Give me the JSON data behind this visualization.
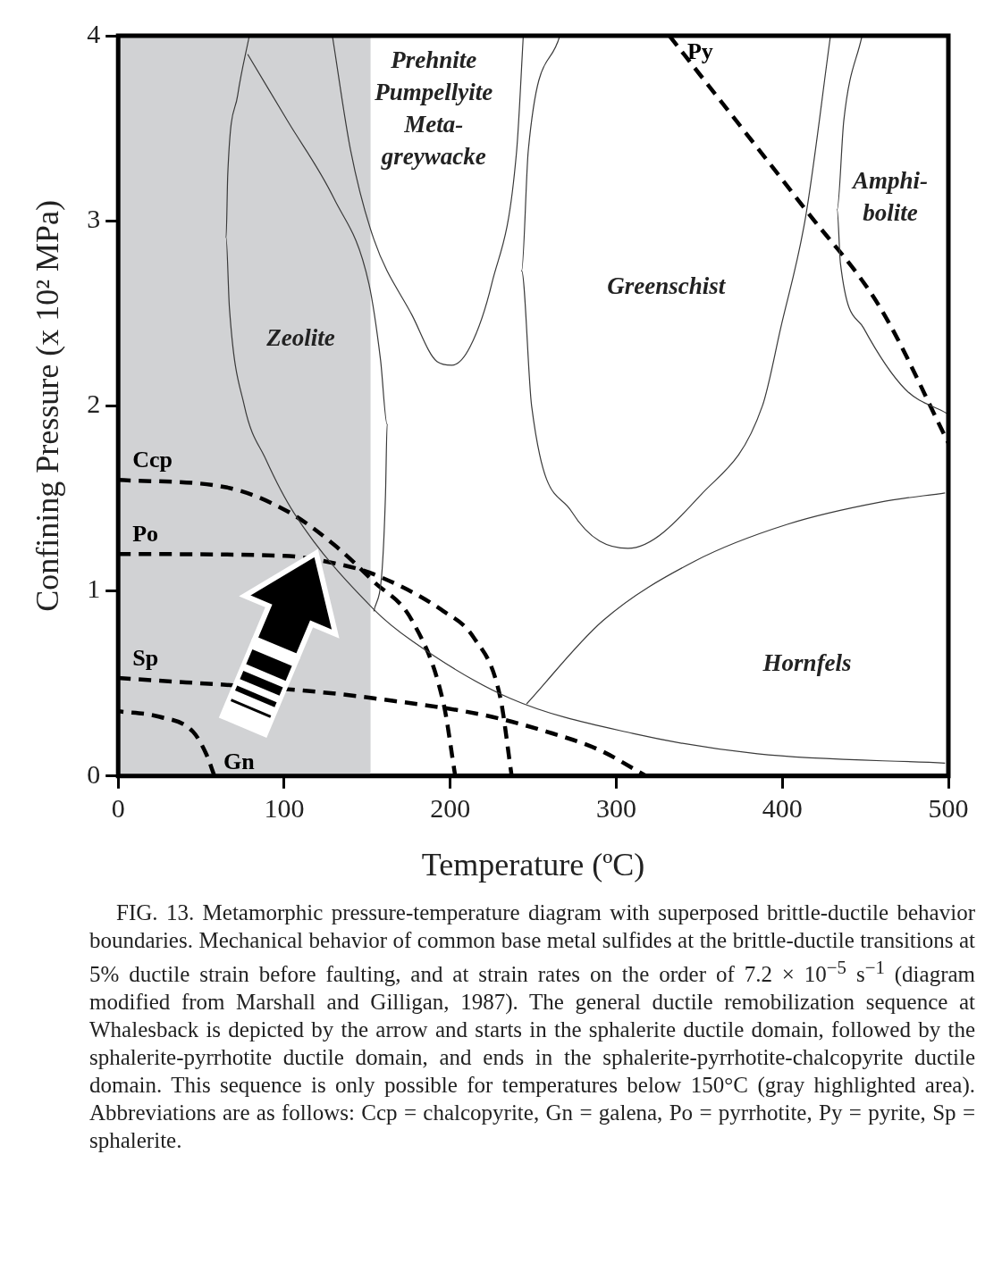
{
  "chart_data": {
    "type": "line",
    "xlabel": "Temperature (ºC)",
    "ylabel": "Confining Pressure (x 10² MPa)",
    "xlim": [
      0,
      500
    ],
    "ylim": [
      0,
      4
    ],
    "xticks": [
      0,
      100,
      200,
      300,
      400,
      500
    ],
    "yticks": [
      0,
      1,
      2,
      3,
      4
    ],
    "grid": false,
    "legend": false,
    "marker": "none",
    "bands": [
      {
        "axis": "x",
        "from": 0,
        "to": 152,
        "color": "#d1d2d4"
      }
    ],
    "series": [
      {
        "type": "line",
        "color": "#3a3a3a",
        "line_style": "solid",
        "x": [
          79,
          72,
          66,
          65,
          67,
          76,
          89,
          106,
          154,
          177,
          236,
          310,
          385,
          498
        ],
        "values": [
          4.0,
          3.68,
          3.25,
          2.91,
          2.53,
          2.0,
          1.71,
          1.42,
          0.9,
          0.73,
          0.42,
          0.23,
          0.12,
          0.07
        ]
      },
      {
        "type": "line",
        "color": "#3a3a3a",
        "line_style": "solid",
        "x": [
          78,
          102,
          130,
          151,
          158,
          162,
          161,
          159,
          154
        ],
        "values": [
          3.9,
          3.54,
          3.12,
          2.66,
          2.25,
          1.9,
          1.52,
          1.12,
          0.89
        ]
      },
      {
        "type": "line",
        "color": "#3a3a3a",
        "line_style": "solid",
        "x": [
          129,
          140,
          154,
          177,
          192,
          201,
          212,
          225,
          240,
          244
        ],
        "values": [
          4.0,
          3.38,
          2.9,
          2.49,
          2.24,
          2.22,
          2.32,
          2.66,
          3.38,
          4.0
        ]
      },
      {
        "type": "line",
        "color": "#3a3a3a",
        "line_style": "solid",
        "x": [
          266,
          247,
          243,
          249,
          273,
          307,
          351,
          388,
          399,
          414,
          429
        ],
        "values": [
          4.0,
          3.38,
          2.73,
          2.0,
          1.43,
          1.23,
          1.52,
          2.0,
          2.42,
          3.02,
          4.0
        ]
      },
      {
        "type": "line",
        "color": "#3a3a3a",
        "line_style": "solid",
        "x": [
          448,
          437,
          433,
          435,
          449,
          474,
          499
        ],
        "values": [
          4.0,
          3.54,
          3.06,
          2.77,
          2.42,
          2.09,
          1.96
        ]
      },
      {
        "type": "line",
        "color": "#3a3a3a",
        "line_style": "solid",
        "x": [
          246,
          292,
          347,
          403,
          459,
          498
        ],
        "values": [
          0.39,
          0.84,
          1.16,
          1.36,
          1.48,
          1.53
        ]
      },
      {
        "type": "line",
        "name": "Py",
        "color": "#000000",
        "line_style": "dashed",
        "x": [
          332,
          414,
          459,
          500
        ],
        "values": [
          4.0,
          3.06,
          2.53,
          1.8
        ]
      },
      {
        "type": "line",
        "name": "Ccp",
        "color": "#000000",
        "line_style": "dashed",
        "x": [
          0,
          65,
          102,
          130,
          154,
          177,
          196,
          203
        ],
        "values": [
          1.6,
          1.56,
          1.43,
          1.25,
          1.05,
          0.84,
          0.39,
          0
        ]
      },
      {
        "type": "line",
        "name": "Po",
        "color": "#000000",
        "line_style": "dashed",
        "x": [
          0,
          100,
          130,
          154,
          196,
          214,
          230,
          237
        ],
        "values": [
          1.2,
          1.19,
          1.15,
          1.09,
          0.89,
          0.75,
          0.43,
          0
        ]
      },
      {
        "type": "line",
        "name": "Sp",
        "color": "#000000",
        "line_style": "dashed",
        "x": [
          0,
          120,
          154,
          220,
          258,
          290,
          318
        ],
        "values": [
          0.53,
          0.455,
          0.42,
          0.33,
          0.24,
          0.14,
          0
        ]
      },
      {
        "type": "line",
        "name": "Gn",
        "color": "#000000",
        "line_style": "dashed",
        "x": [
          58,
          53,
          45,
          25,
          0
        ],
        "values": [
          0,
          0.12,
          0.24,
          0.32,
          0.35
        ]
      }
    ],
    "annotations": [
      "Prehnite\nPumpellyite\nMeta-\ngreywacke",
      "Zeolite",
      "Greenschist",
      "Amphi-\nbolite",
      "Hornfels",
      "FIG. 13. Metamorphic pressure-temperature diagram with superposed brittle-ductile behavior boundaries. Mechanical behavior of common base metal sulfides at the brittle-ductile transitions at 5% ductile strain before faulting, and at strain rates on the order of 7.2 × 10$^{−5}$ s$^{−1}$ (diagram modified from Marshall and Gilligan, 1987). The general ductile remobilization sequence at Whalesback is depicted by the arrow and starts in the sphalerite ductile domain, followed by the sphalerite-pyrrhotite ductile domain, and ends in the sphalerite-pyrrhotite-chalcopyrite ductile domain. This sequence is only possible for temperatures below 150°C (gray highlighted area). Abbreviations are as follows: Ccp = chalcopyrite, Gn = galena, Po = pyrrhotite, Py = pyrite, Sp = sphalerite."
    ]
  }
}
